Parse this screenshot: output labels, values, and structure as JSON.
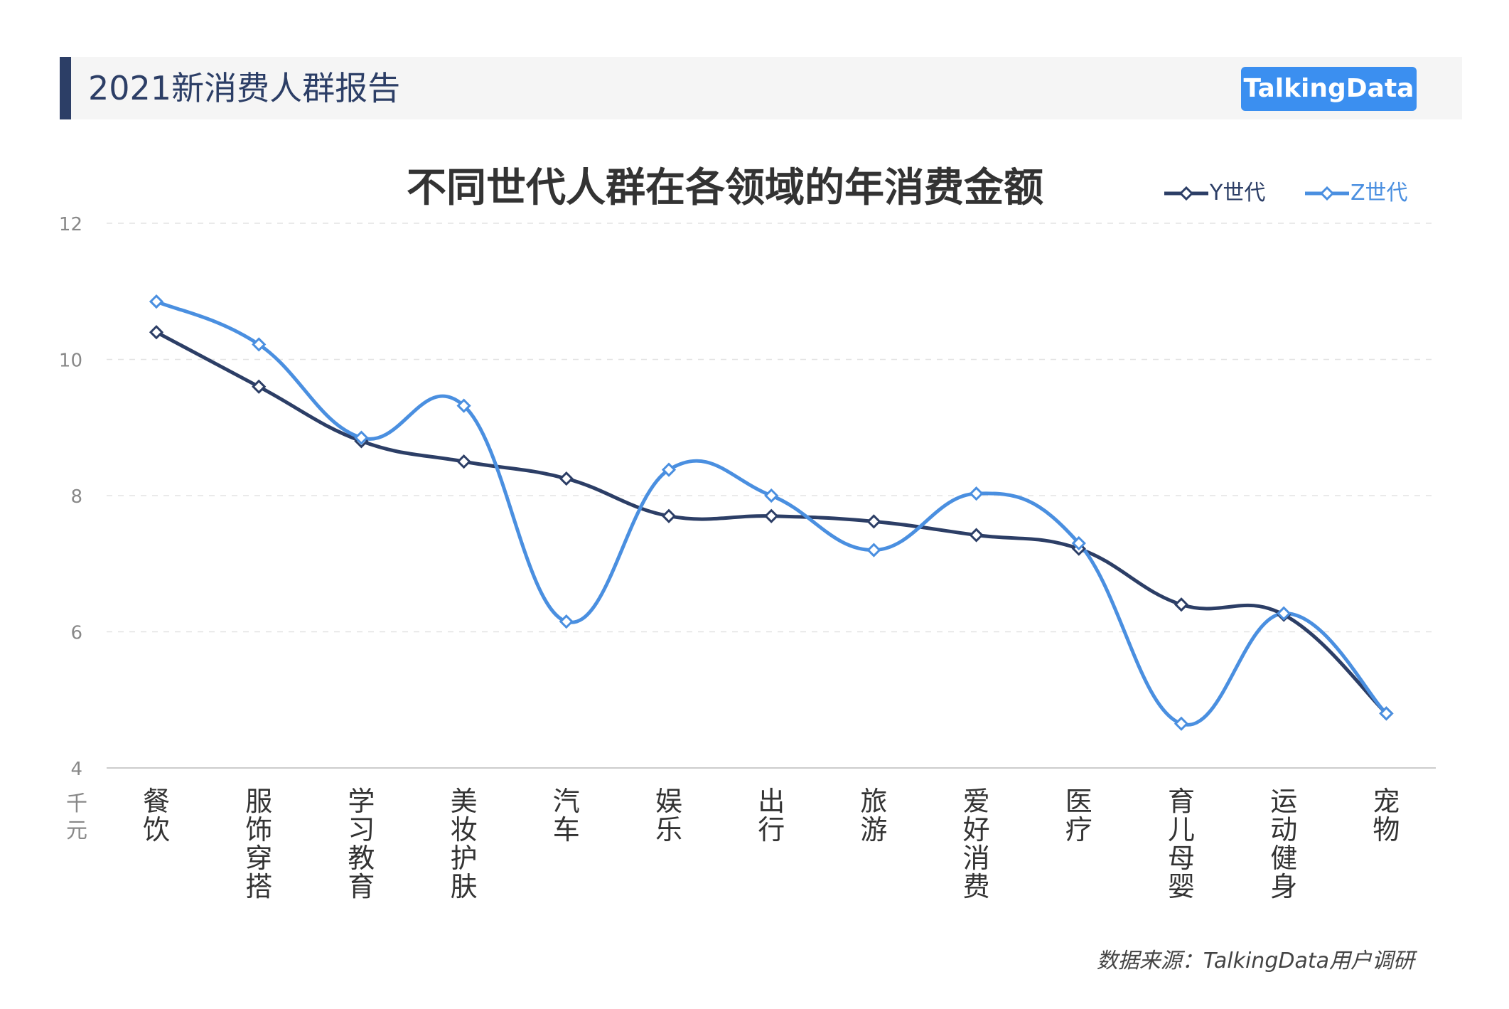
{
  "header": {
    "title": "2021新消费人群报告",
    "logo_text": "TalkingData"
  },
  "footer": {
    "source": "数据来源：TalkingData用户调研"
  },
  "chart_data": {
    "type": "line",
    "title": "不同世代人群在各领域的年消费金额",
    "unit_label": "千元",
    "categories": [
      "餐饮",
      "服饰穿搭",
      "学习教育",
      "美妆护肤",
      "汽车",
      "娱乐",
      "出行",
      "旅游",
      "爱好消费",
      "医疗",
      "育儿母婴",
      "运动健身",
      "宠物"
    ],
    "ylim": [
      4,
      12
    ],
    "yticks": [
      "4",
      "6",
      "8",
      "10",
      "12"
    ],
    "grid": true,
    "legend_position": "top-right",
    "series": [
      {
        "name": "Y世代",
        "color": "#2c3e66",
        "values": [
          10.4,
          9.6,
          8.8,
          8.5,
          8.25,
          7.7,
          7.7,
          7.62,
          7.42,
          7.22,
          6.4,
          6.25,
          4.8
        ]
      },
      {
        "name": "Z世代",
        "color": "#4a8fe0",
        "values": [
          10.85,
          10.22,
          8.85,
          9.32,
          6.15,
          8.38,
          8.0,
          7.2,
          8.03,
          7.3,
          4.65,
          6.27,
          4.8
        ]
      }
    ]
  }
}
